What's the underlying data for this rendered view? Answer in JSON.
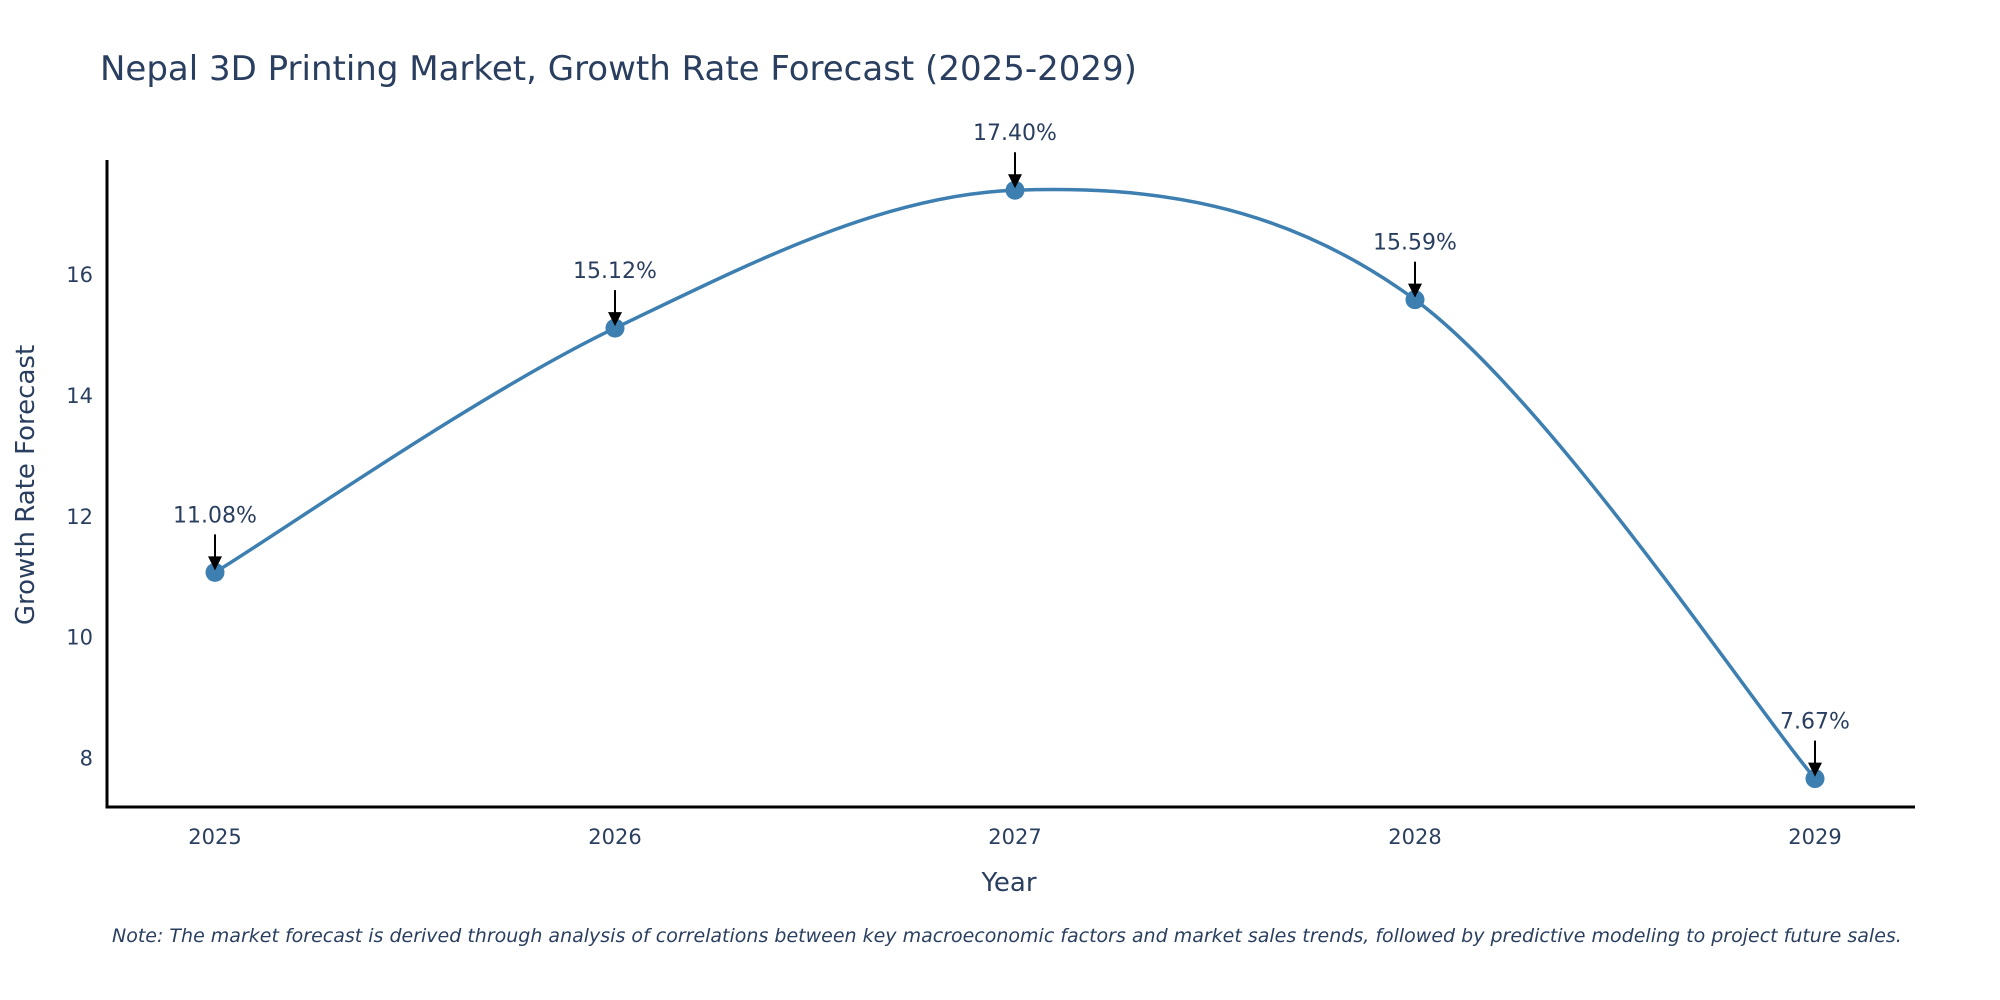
{
  "chart_data": {
    "type": "line",
    "title": "Nepal 3D Printing Market, Growth Rate Forecast (2025-2029)",
    "xlabel": "Year",
    "ylabel": "Growth Rate Forecast",
    "categories": [
      "2025",
      "2026",
      "2027",
      "2028",
      "2029"
    ],
    "series": [
      {
        "name": "Growth Rate Forecast",
        "values": [
          11.08,
          15.12,
          17.4,
          15.59,
          7.67
        ],
        "labels": [
          "11.08%",
          "15.12%",
          "17.40%",
          "15.59%",
          "7.67%"
        ],
        "color": "#3d7fb0"
      }
    ],
    "yticks": [
      "8",
      "10",
      "12",
      "14",
      "16"
    ],
    "ytick_values": [
      8,
      10,
      12,
      14,
      16
    ],
    "ylim": [
      7.2,
      17.9
    ],
    "xlim": [
      -0.27,
      4.25
    ],
    "grid": false,
    "smoothing": "spline",
    "annotation_arrows": true,
    "note": "Note: The market forecast is derived through analysis of correlations between key macroeconomic factors and market sales trends, followed by predictive modeling to project future sales."
  },
  "colors": {
    "line": "#3d7fb0",
    "marker": "#3d7fb0",
    "axis": "#000000",
    "text": "#2a3f5f",
    "arrow": "#000000"
  }
}
